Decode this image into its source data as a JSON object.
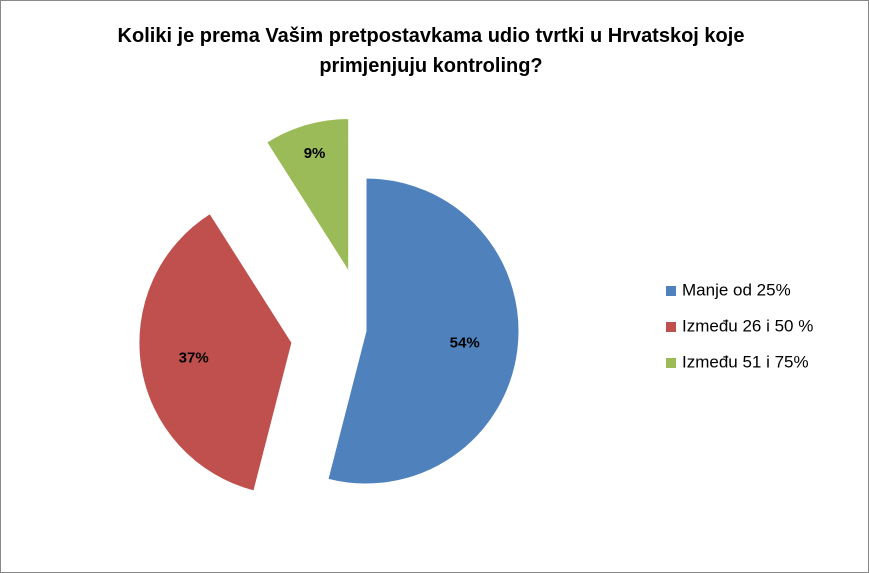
{
  "chart_data": {
    "type": "pie",
    "title": "Koliki je prema Vašim pretpostavkama udio tvrtki u Hrvatskoj koje primjenjuju kontroling?",
    "categories": [
      "Manje od 25%",
      "Između 26 i 50 %",
      "Između 51 i 75%"
    ],
    "values": [
      54,
      37,
      9
    ],
    "value_labels": [
      "54%",
      "37%",
      "9%"
    ],
    "colors": [
      "#4f81bd",
      "#c0504d",
      "#9bbb59"
    ],
    "legend": "right"
  }
}
